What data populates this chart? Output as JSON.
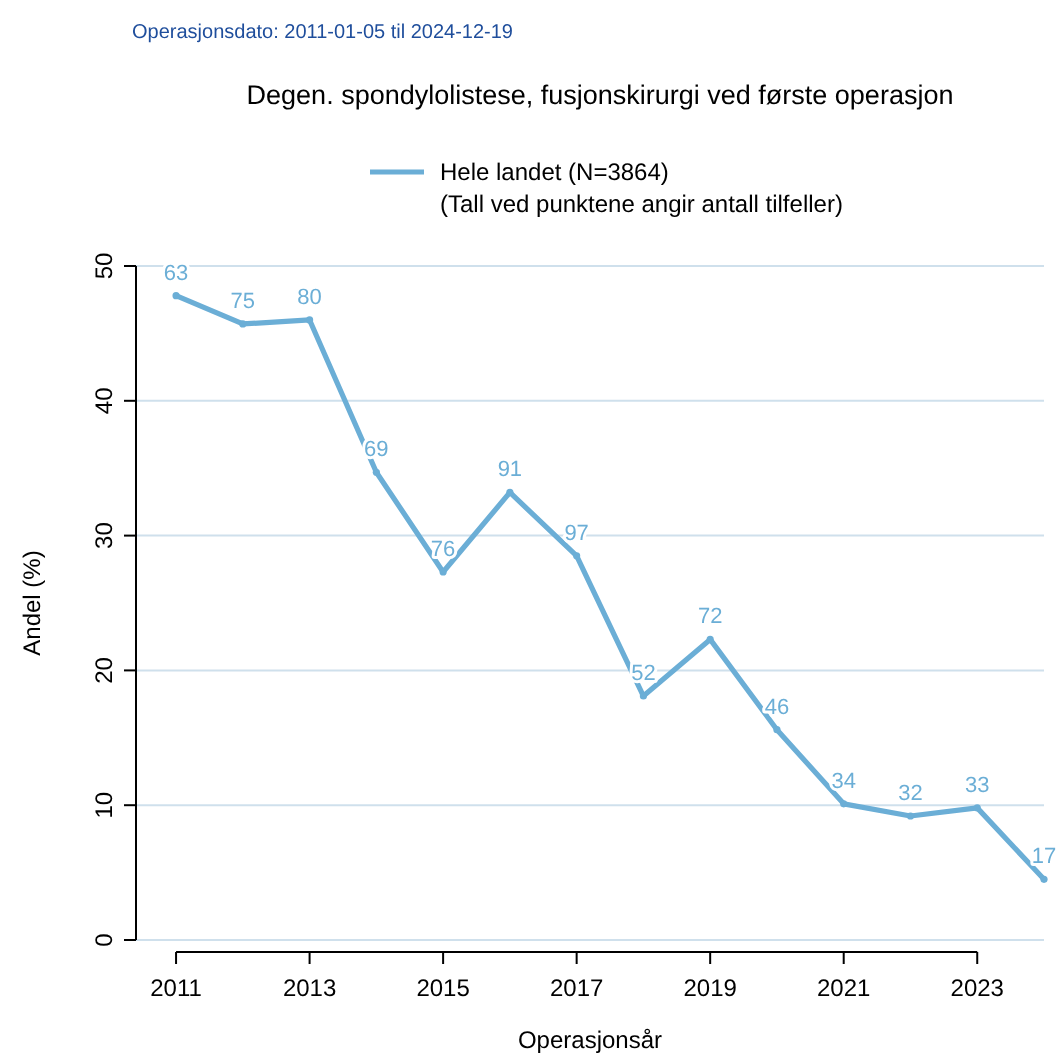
{
  "chart_data": {
    "type": "line",
    "title": "Degen. spondylolistese, fusjonskirurgi ved første operasjon",
    "xlabel": "Operasjonsår",
    "ylabel": "Andel (%)",
    "annotations": [
      "Operasjonsdato: 2011-01-05 til 2024-12-19",
      "(Tall ved punktene angir antall tilfeller)",
      {
        "text": "63",
        "x": 2011,
        "y": 47.8
      },
      {
        "text": "75",
        "x": 2012,
        "y": 45.7
      },
      {
        "text": "80",
        "x": 2013,
        "y": 46.0
      },
      {
        "text": "69",
        "x": 2014,
        "y": 34.7
      },
      {
        "text": "76",
        "x": 2015,
        "y": 27.3
      },
      {
        "text": "91",
        "x": 2016,
        "y": 33.2
      },
      {
        "text": "97",
        "x": 2017,
        "y": 28.5
      },
      {
        "text": "52",
        "x": 2018,
        "y": 18.1
      },
      {
        "text": "72",
        "x": 2019,
        "y": 22.3
      },
      {
        "text": "46",
        "x": 2020,
        "y": 15.6
      },
      {
        "text": "34",
        "x": 2021,
        "y": 10.1
      },
      {
        "text": "32",
        "x": 2022,
        "y": 9.2
      },
      {
        "text": "33",
        "x": 2023,
        "y": 9.8
      },
      {
        "text": "17",
        "x": 2024,
        "y": 4.5
      }
    ],
    "x": [
      2011,
      2012,
      2013,
      2014,
      2015,
      2016,
      2017,
      2018,
      2019,
      2020,
      2021,
      2022,
      2023,
      2024
    ],
    "series": [
      {
        "name": "Hele landet (N=3864)",
        "color": "#6baed6",
        "values": [
          47.8,
          45.7,
          46.0,
          34.7,
          27.3,
          33.2,
          28.5,
          18.1,
          22.3,
          15.6,
          10.1,
          9.2,
          9.8,
          4.5
        ]
      }
    ],
    "xlim": [
      2010.4,
      2024
    ],
    "xticks": [
      2011,
      2013,
      2015,
      2017,
      2019,
      2021,
      2023
    ],
    "ylim": [
      0,
      50
    ],
    "yticks": [
      0,
      10,
      20,
      30,
      40,
      50
    ],
    "grid": "y",
    "legend": "top",
    "marker": "circle",
    "line_style": "solid"
  }
}
